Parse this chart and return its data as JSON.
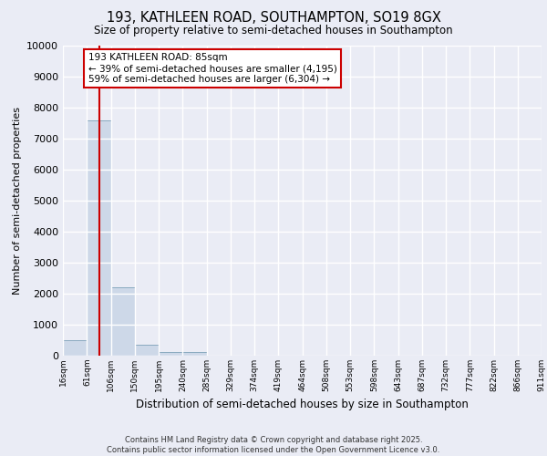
{
  "title1": "193, KATHLEEN ROAD, SOUTHAMPTON, SO19 8GX",
  "title2": "Size of property relative to semi-detached houses in Southampton",
  "xlabel": "Distribution of semi-detached houses by size in Southampton",
  "ylabel": "Number of semi-detached properties",
  "footer1": "Contains HM Land Registry data © Crown copyright and database right 2025.",
  "footer2": "Contains public sector information licensed under the Open Government Licence v3.0.",
  "bins": [
    16,
    61,
    106,
    150,
    195,
    240,
    285,
    329,
    374,
    419,
    464,
    508,
    553,
    598,
    643,
    687,
    732,
    777,
    822,
    866,
    911
  ],
  "counts": [
    500,
    7600,
    2200,
    350,
    120,
    120,
    0,
    0,
    0,
    0,
    0,
    0,
    0,
    0,
    0,
    0,
    0,
    0,
    0,
    0
  ],
  "property_size": 85,
  "annotation_title": "193 KATHLEEN ROAD: 85sqm",
  "annotation_line1": "← 39% of semi-detached houses are smaller (4,195)",
  "annotation_line2": "59% of semi-detached houses are larger (6,304) →",
  "bar_color": "#cdd8e8",
  "bar_edge_color": "#8aaabf",
  "red_line_color": "#cc0000",
  "ylim": [
    0,
    10000
  ],
  "background_color": "#eaecf5",
  "grid_color": "#ffffff",
  "annotation_box_color": "#ffffff",
  "annotation_box_edge": "#cc0000"
}
